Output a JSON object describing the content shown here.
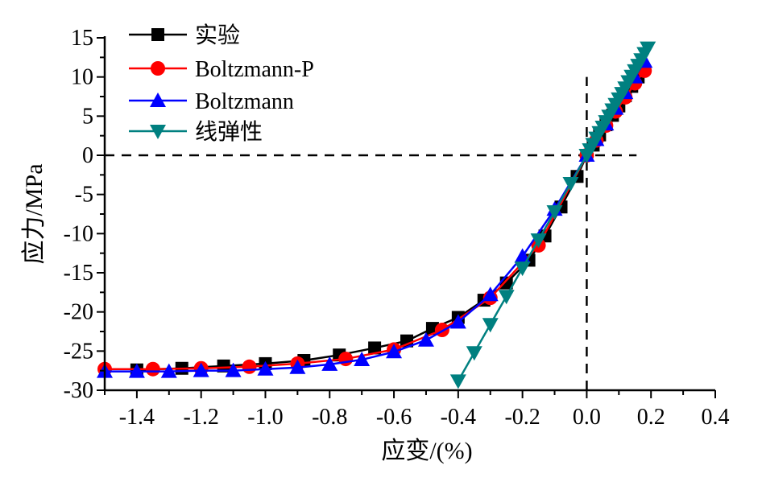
{
  "chart_data": {
    "type": "line",
    "title": "",
    "xlabel": "应变/(%)",
    "ylabel": "应力/MPa",
    "xlim": [
      -1.5,
      0.4
    ],
    "ylim": [
      -30,
      15
    ],
    "xticks": [
      "-1.4",
      "-1.2",
      "-1.0",
      "-0.8",
      "-0.6",
      "-0.4",
      "-0.2",
      "0.0",
      "0.2",
      "0.4"
    ],
    "xtick_values": [
      -1.4,
      -1.2,
      -1.0,
      -0.8,
      -0.6,
      -0.4,
      -0.2,
      0.0,
      0.2,
      0.4
    ],
    "yticks": [
      "-30",
      "-25",
      "-20",
      "-15",
      "-10",
      "-5",
      "0",
      "5",
      "10",
      "15"
    ],
    "ytick_values": [
      -30,
      -25,
      -20,
      -15,
      -10,
      -5,
      0,
      5,
      10,
      15
    ],
    "grid": false,
    "legend_position": "top-left",
    "reference_lines": {
      "x": 0,
      "y": 0,
      "style": "dashed"
    },
    "series": [
      {
        "name": "实验",
        "color": "#000000",
        "marker": "square",
        "x": [
          -1.4,
          -1.26,
          -1.13,
          -1.0,
          -0.88,
          -0.77,
          -0.66,
          -0.56,
          -0.48,
          -0.4,
          -0.32,
          -0.25,
          -0.18,
          -0.13,
          -0.08,
          -0.03,
          0.0,
          0.02,
          0.04,
          0.06,
          0.08,
          0.1,
          0.12,
          0.14,
          0.16
        ],
        "y": [
          -27.4,
          -27.2,
          -26.9,
          -26.6,
          -26.2,
          -25.5,
          -24.6,
          -23.7,
          -22.1,
          -20.7,
          -18.5,
          -16.3,
          -13.4,
          -10.3,
          -6.6,
          -2.7,
          0.0,
          1.3,
          2.6,
          3.9,
          5.1,
          6.3,
          7.6,
          8.8,
          10.0
        ]
      },
      {
        "name": "Boltzmann-P",
        "color": "#ff0000",
        "marker": "circle",
        "x": [
          -1.5,
          -1.35,
          -1.2,
          -1.05,
          -0.9,
          -0.75,
          -0.6,
          -0.45,
          -0.3,
          -0.15,
          0.0,
          0.03,
          0.06,
          0.09,
          0.12,
          0.15,
          0.18
        ],
        "y": [
          -27.3,
          -27.3,
          -27.2,
          -27.0,
          -26.6,
          -26.0,
          -24.8,
          -22.3,
          -18.2,
          -11.5,
          0.0,
          1.9,
          3.8,
          5.6,
          7.4,
          9.2,
          10.8
        ]
      },
      {
        "name": "Boltzmann",
        "color": "#0000ff",
        "marker": "triangle-up",
        "x": [
          -1.5,
          -1.4,
          -1.3,
          -1.2,
          -1.1,
          -1.0,
          -0.9,
          -0.8,
          -0.7,
          -0.6,
          -0.5,
          -0.4,
          -0.3,
          -0.2,
          -0.1,
          0.0,
          0.03,
          0.06,
          0.09,
          0.12,
          0.15,
          0.18
        ],
        "y": [
          -27.6,
          -27.6,
          -27.6,
          -27.5,
          -27.5,
          -27.3,
          -27.1,
          -26.7,
          -26.1,
          -25.1,
          -23.6,
          -21.3,
          -17.8,
          -12.9,
          -6.9,
          0.0,
          2.0,
          4.0,
          6.0,
          8.0,
          10.0,
          12.0
        ]
      },
      {
        "name": "线弹性",
        "color": "#008080",
        "marker": "triangle-down",
        "x": [
          -0.4,
          -0.35,
          -0.3,
          -0.25,
          -0.2,
          -0.15,
          -0.1,
          -0.05,
          0.0,
          0.01,
          0.02,
          0.03,
          0.04,
          0.05,
          0.06,
          0.07,
          0.08,
          0.09,
          0.1,
          0.11,
          0.12,
          0.13,
          0.14,
          0.15,
          0.16,
          0.17,
          0.18,
          0.19
        ],
        "y": [
          -28.8,
          -25.2,
          -21.6,
          -18.0,
          -14.4,
          -10.8,
          -7.2,
          -3.6,
          0.0,
          0.7,
          1.4,
          2.2,
          2.9,
          3.6,
          4.3,
          5.0,
          5.8,
          6.5,
          7.2,
          7.9,
          8.6,
          9.4,
          10.1,
          10.8,
          11.5,
          12.2,
          13.0,
          13.7
        ]
      }
    ]
  }
}
